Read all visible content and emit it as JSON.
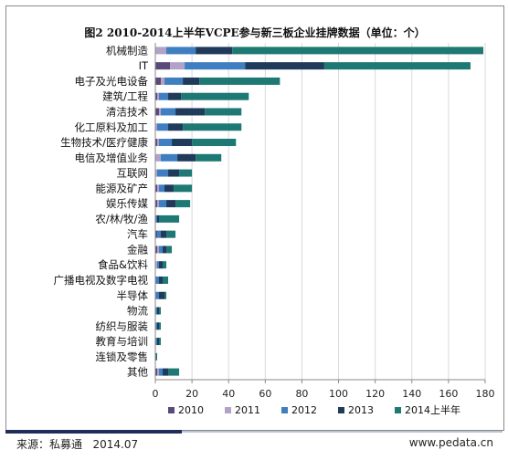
{
  "source_label": "来源：私募通",
  "source_date": "2014.07",
  "website": "www.pedata.cn",
  "chart_data": {
    "type": "bar",
    "orientation": "horizontal",
    "stacked": true,
    "title": "图2 2010-2014上半年VCPE参与新三板企业挂牌数据（单位：个）",
    "categories": [
      "机械制造",
      "IT",
      "电子及光电设备",
      "建筑/工程",
      "清洁技术",
      "化工原料及加工",
      "生物技术/医疗健康",
      "电信及增值业务",
      "互联网",
      "能源及矿产",
      "娱乐传媒",
      "农/林/牧/渔",
      "汽车",
      "金融",
      "食品&饮料",
      "广播电视及数字电视",
      "半导体",
      "物流",
      "纺织与服装",
      "教育与培训",
      "连锁及零售",
      "其他"
    ],
    "series": [
      {
        "name": "2010",
        "color": "#5a4a7a",
        "values": [
          0,
          8,
          3,
          1,
          2,
          0,
          1,
          0,
          0,
          1,
          1,
          0,
          1,
          1,
          0,
          0,
          0,
          0,
          0,
          0,
          0,
          1
        ]
      },
      {
        "name": "2011",
        "color": "#b3a2c7",
        "values": [
          6,
          8,
          2,
          1,
          1,
          1,
          1,
          3,
          1,
          1,
          1,
          0,
          0,
          1,
          1,
          0,
          0,
          0,
          0,
          0,
          0,
          1
        ]
      },
      {
        "name": "2012",
        "color": "#3f7fc1",
        "values": [
          16,
          33,
          10,
          5,
          8,
          6,
          7,
          9,
          6,
          3,
          4,
          1,
          2,
          2,
          1,
          2,
          2,
          1,
          1,
          1,
          0,
          2
        ]
      },
      {
        "name": "2013",
        "color": "#1f3a5a",
        "values": [
          20,
          43,
          9,
          7,
          16,
          8,
          11,
          10,
          6,
          5,
          5,
          1,
          3,
          2,
          2,
          2,
          3,
          1,
          1,
          1,
          0,
          3
        ]
      },
      {
        "name": "2014上半年",
        "color": "#1e7873",
        "values": [
          137,
          80,
          44,
          37,
          20,
          32,
          24,
          14,
          7,
          10,
          8,
          11,
          5,
          3,
          2,
          3,
          1,
          1,
          1,
          1,
          1,
          6
        ]
      }
    ],
    "xlim": [
      0,
      180
    ],
    "xticks": [
      "0",
      "20",
      "40",
      "60",
      "80",
      "100",
      "120",
      "140",
      "160",
      "180"
    ],
    "grid": true,
    "legend_position": "bottom"
  }
}
